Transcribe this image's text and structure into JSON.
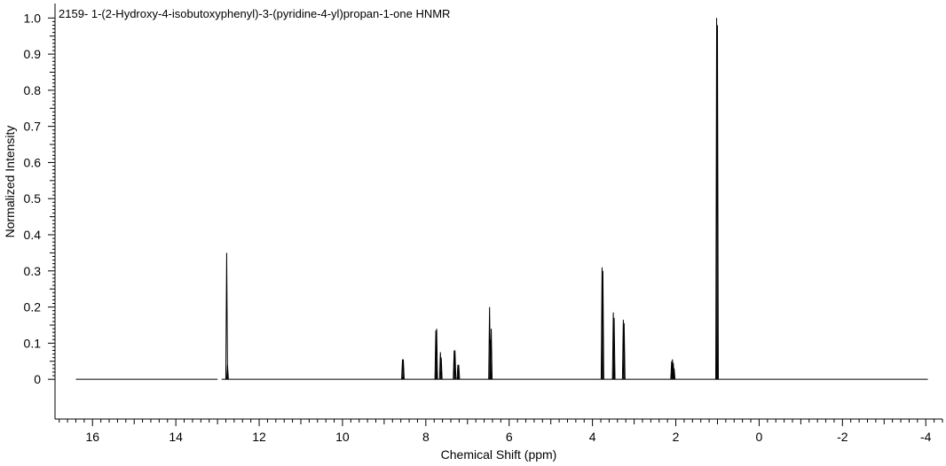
{
  "chart_data": {
    "type": "line",
    "title": "2159- 1-(2-Hydroxy-4-isobutoxyphenyl)-3-(pyridine-4-yl)propan-1-one HNMR",
    "xlabel": "Chemical Shift (ppm)",
    "ylabel": "Normalized Intensity",
    "xlim": [
      16.9,
      -4.4
    ],
    "ylim": [
      -0.11,
      1.04
    ],
    "x_axis_reversed": true,
    "x_ticks": [
      16,
      14,
      12,
      10,
      8,
      6,
      4,
      2,
      0,
      -2,
      -4
    ],
    "x_tick_labels": [
      "16",
      "14",
      "12",
      "10",
      "8",
      "6",
      "4",
      "2",
      "0",
      "-2",
      "-4"
    ],
    "y_ticks": [
      0,
      0.1,
      0.2,
      0.3,
      0.4,
      0.5,
      0.6,
      0.7,
      0.8,
      0.9,
      1.0
    ],
    "y_tick_labels": [
      "0",
      "0.1",
      "0.2",
      "0.3",
      "0.4",
      "0.5",
      "0.6",
      "0.7",
      "0.8",
      "0.9",
      "1.0"
    ],
    "spectrum_range": [
      16.4,
      -4.05
    ],
    "spectrum_gap": [
      13.0,
      12.9
    ],
    "line_color": "#000000",
    "peaks": [
      {
        "shift": 12.78,
        "intensity": 0.35
      },
      {
        "shift": 12.76,
        "intensity": 0.04
      },
      {
        "shift": 8.56,
        "intensity": 0.055
      },
      {
        "shift": 8.54,
        "intensity": 0.055
      },
      {
        "shift": 7.76,
        "intensity": 0.135
      },
      {
        "shift": 7.74,
        "intensity": 0.14
      },
      {
        "shift": 7.65,
        "intensity": 0.075
      },
      {
        "shift": 7.63,
        "intensity": 0.06
      },
      {
        "shift": 7.32,
        "intensity": 0.08
      },
      {
        "shift": 7.3,
        "intensity": 0.08
      },
      {
        "shift": 7.23,
        "intensity": 0.04
      },
      {
        "shift": 7.21,
        "intensity": 0.04
      },
      {
        "shift": 6.47,
        "intensity": 0.2
      },
      {
        "shift": 6.45,
        "intensity": 0.11
      },
      {
        "shift": 6.43,
        "intensity": 0.14
      },
      {
        "shift": 3.77,
        "intensity": 0.31
      },
      {
        "shift": 3.75,
        "intensity": 0.3
      },
      {
        "shift": 3.5,
        "intensity": 0.185
      },
      {
        "shift": 3.48,
        "intensity": 0.17
      },
      {
        "shift": 3.26,
        "intensity": 0.165
      },
      {
        "shift": 3.24,
        "intensity": 0.155
      },
      {
        "shift": 2.1,
        "intensity": 0.05
      },
      {
        "shift": 2.08,
        "intensity": 0.055
      },
      {
        "shift": 2.06,
        "intensity": 0.045
      },
      {
        "shift": 2.04,
        "intensity": 0.03
      },
      {
        "shift": 1.02,
        "intensity": 1.0
      },
      {
        "shift": 1.0,
        "intensity": 0.98
      }
    ]
  }
}
